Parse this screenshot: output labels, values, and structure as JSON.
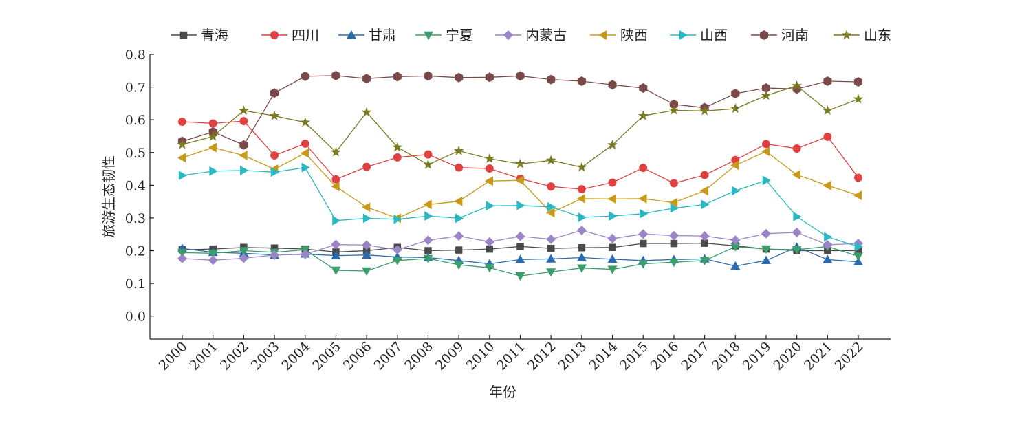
{
  "chart_data": {
    "type": "line",
    "title": "",
    "xlabel": "年份",
    "ylabel": "旅游生态韧性",
    "ylim": [
      -0.07,
      0.8
    ],
    "yticks": [
      0.0,
      0.1,
      0.2,
      0.3,
      0.4,
      0.5,
      0.6,
      0.7,
      0.8
    ],
    "ytick_labels": [
      "0.0",
      "0.1",
      "0.2",
      "0.3",
      "0.4",
      "0.5",
      "0.6",
      "0.7",
      "0.8"
    ],
    "x": [
      "2000",
      "2001",
      "2002",
      "2003",
      "2004",
      "2005",
      "2006",
      "2007",
      "2008",
      "2009",
      "2010",
      "2011",
      "2012",
      "2013",
      "2014",
      "2015",
      "2016",
      "2017",
      "2018",
      "2019",
      "2020",
      "2021",
      "2022"
    ],
    "legend_position": "top",
    "series": [
      {
        "name": "青海",
        "color": "#4a4a4a",
        "marker": "square",
        "values": [
          0.203,
          0.205,
          0.21,
          0.208,
          0.205,
          0.196,
          0.2,
          0.21,
          0.2,
          0.202,
          0.205,
          0.213,
          0.207,
          0.209,
          0.21,
          0.222,
          0.222,
          0.223,
          0.215,
          0.205,
          0.2,
          0.2,
          0.2
        ]
      },
      {
        "name": "四川",
        "color": "#e04040",
        "marker": "circle",
        "values": [
          0.594,
          0.589,
          0.596,
          0.491,
          0.527,
          0.418,
          0.456,
          0.485,
          0.494,
          0.454,
          0.451,
          0.42,
          0.396,
          0.388,
          0.408,
          0.453,
          0.406,
          0.431,
          0.477,
          0.526,
          0.512,
          0.548,
          0.423
        ]
      },
      {
        "name": "甘肃",
        "color": "#2b6cb0",
        "marker": "triangle-up",
        "values": [
          0.207,
          0.195,
          0.192,
          0.187,
          0.19,
          0.185,
          0.187,
          0.181,
          0.179,
          0.17,
          0.16,
          0.173,
          0.175,
          0.179,
          0.174,
          0.17,
          0.173,
          0.175,
          0.153,
          0.17,
          0.211,
          0.173,
          0.166
        ]
      },
      {
        "name": "宁夏",
        "color": "#3a9e6a",
        "marker": "triangle-down",
        "values": [
          0.194,
          0.192,
          0.2,
          0.195,
          0.203,
          0.14,
          0.138,
          0.17,
          0.176,
          0.157,
          0.148,
          0.123,
          0.135,
          0.147,
          0.143,
          0.16,
          0.165,
          0.17,
          0.212,
          0.205,
          0.203,
          0.213,
          0.183
        ]
      },
      {
        "name": "内蒙古",
        "color": "#9b84c8",
        "marker": "diamond",
        "values": [
          0.176,
          0.171,
          0.177,
          0.187,
          0.189,
          0.219,
          0.217,
          0.203,
          0.232,
          0.245,
          0.227,
          0.244,
          0.235,
          0.262,
          0.237,
          0.251,
          0.246,
          0.245,
          0.232,
          0.252,
          0.256,
          0.218,
          0.222
        ]
      },
      {
        "name": "陕西",
        "color": "#c99a1a",
        "marker": "triangle-left",
        "values": [
          0.484,
          0.515,
          0.491,
          0.449,
          0.498,
          0.396,
          0.333,
          0.299,
          0.341,
          0.351,
          0.413,
          0.415,
          0.316,
          0.359,
          0.358,
          0.359,
          0.347,
          0.383,
          0.461,
          0.503,
          0.432,
          0.399,
          0.369
        ]
      },
      {
        "name": "山西",
        "color": "#2ab8c4",
        "marker": "triangle-right",
        "values": [
          0.43,
          0.443,
          0.445,
          0.44,
          0.454,
          0.292,
          0.299,
          0.296,
          0.306,
          0.299,
          0.337,
          0.338,
          0.334,
          0.302,
          0.306,
          0.313,
          0.33,
          0.341,
          0.383,
          0.415,
          0.304,
          0.242,
          0.212
        ]
      },
      {
        "name": "河南",
        "color": "#7b4a48",
        "marker": "hexagon",
        "values": [
          0.534,
          0.563,
          0.523,
          0.682,
          0.733,
          0.735,
          0.726,
          0.732,
          0.734,
          0.729,
          0.73,
          0.734,
          0.723,
          0.718,
          0.707,
          0.697,
          0.647,
          0.637,
          0.68,
          0.697,
          0.694,
          0.718,
          0.716
        ]
      },
      {
        "name": "山东",
        "color": "#7a7a22",
        "marker": "star",
        "values": [
          0.524,
          0.549,
          0.628,
          0.612,
          0.592,
          0.501,
          0.623,
          0.516,
          0.463,
          0.505,
          0.481,
          0.465,
          0.476,
          0.455,
          0.523,
          0.612,
          0.629,
          0.627,
          0.634,
          0.674,
          0.704,
          0.628,
          0.663
        ]
      }
    ]
  }
}
